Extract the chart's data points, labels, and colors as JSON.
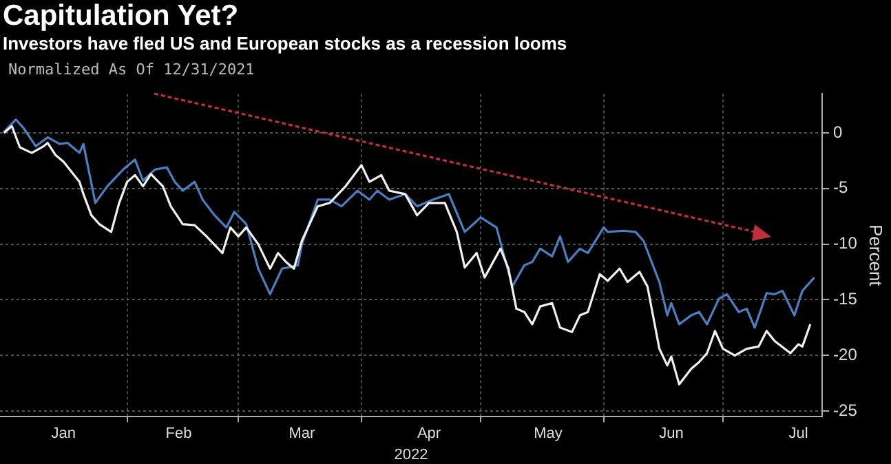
{
  "chart_data": {
    "type": "line",
    "title": "Capitulation Yet?",
    "subtitle": "Investors have fled US and European stocks as a recession looms",
    "annotations": [
      "Normalized As Of 12/31/2021"
    ],
    "xlabel": "2022",
    "ylabel": "Percent",
    "xlim": [
      "2021-12-31",
      "2022-07-26"
    ],
    "xticks": [
      {
        "value": "2022-01-16",
        "label": "Jan"
      },
      {
        "value": "2022-02-01",
        "label": null
      },
      {
        "value": "2022-02-14",
        "label": "Feb"
      },
      {
        "value": "2022-03-01",
        "label": null
      },
      {
        "value": "2022-03-17",
        "label": "Mar"
      },
      {
        "value": "2022-04-01",
        "label": null
      },
      {
        "value": "2022-04-18",
        "label": "Apr"
      },
      {
        "value": "2022-05-01",
        "label": null
      },
      {
        "value": "2022-05-18",
        "label": "May"
      },
      {
        "value": "2022-06-01",
        "label": null
      },
      {
        "value": "2022-06-18",
        "label": "Jun"
      },
      {
        "value": "2022-07-01",
        "label": null
      },
      {
        "value": "2022-07-20",
        "label": "Jul"
      }
    ],
    "ylim": [
      -25.5,
      3.5
    ],
    "yticks": [
      0,
      -5,
      -10,
      -15,
      -20,
      -25
    ],
    "grid": true,
    "legend": false,
    "marker": "none",
    "line_style": "solid",
    "series": [
      {
        "color": "#f0f0f0",
        "x": [
          "2022-01-01",
          "2022-01-03",
          "2022-01-05",
          "2022-01-08",
          "2022-01-11",
          "2022-01-12",
          "2022-01-14",
          "2022-01-16",
          "2022-01-20",
          "2022-01-21",
          "2022-01-23",
          "2022-01-25",
          "2022-01-28",
          "2022-01-30",
          "2022-02-01",
          "2022-02-03",
          "2022-02-05",
          "2022-02-07",
          "2022-02-10",
          "2022-02-12",
          "2022-02-15",
          "2022-02-18",
          "2022-02-21",
          "2022-02-25",
          "2022-02-27",
          "2022-03-01",
          "2022-03-03",
          "2022-03-06",
          "2022-03-09",
          "2022-03-11",
          "2022-03-13",
          "2022-03-15",
          "2022-03-17",
          "2022-03-21",
          "2022-03-24",
          "2022-03-28",
          "2022-04-01",
          "2022-04-03",
          "2022-04-06",
          "2022-04-08",
          "2022-04-12",
          "2022-04-15",
          "2022-04-18",
          "2022-04-22",
          "2022-04-25",
          "2022-04-27",
          "2022-04-30",
          "2022-05-02",
          "2022-05-06",
          "2022-05-08",
          "2022-05-10",
          "2022-05-12",
          "2022-05-14",
          "2022-05-16",
          "2022-05-19",
          "2022-05-21",
          "2022-05-24",
          "2022-05-26",
          "2022-05-28",
          "2022-05-31",
          "2022-06-02",
          "2022-06-05",
          "2022-06-07",
          "2022-06-10",
          "2022-06-12",
          "2022-06-15",
          "2022-06-17",
          "2022-06-18",
          "2022-06-20",
          "2022-06-23",
          "2022-06-25",
          "2022-06-27",
          "2022-06-29",
          "2022-07-01",
          "2022-07-04",
          "2022-07-07",
          "2022-07-10",
          "2022-07-12",
          "2022-07-14",
          "2022-07-18",
          "2022-07-20",
          "2022-07-21",
          "2022-07-23"
        ],
        "values": [
          0,
          0.6,
          -1.3,
          -1.8,
          -1.2,
          -0.9,
          -2.0,
          -2.6,
          -4.4,
          -5.5,
          -7.4,
          -8.2,
          -8.9,
          -6.3,
          -4.4,
          -3.8,
          -4.8,
          -3.7,
          -4.8,
          -6.6,
          -8.2,
          -8.3,
          -9.3,
          -10.8,
          -8.5,
          -9.3,
          -8.5,
          -10.0,
          -12.2,
          -10.8,
          -11.6,
          -12.2,
          -9.7,
          -6.6,
          -6.3,
          -4.8,
          -2.9,
          -4.4,
          -3.8,
          -5.2,
          -5.5,
          -7.4,
          -6.3,
          -6.3,
          -8.9,
          -12.1,
          -10.8,
          -13.0,
          -10.4,
          -12.2,
          -15.8,
          -16.1,
          -17.2,
          -15.6,
          -15.3,
          -17.5,
          -17.9,
          -16.4,
          -16.1,
          -12.7,
          -13.3,
          -12.2,
          -13.4,
          -12.5,
          -13.8,
          -19.4,
          -20.9,
          -20.1,
          -22.6,
          -21.2,
          -20.6,
          -19.8,
          -17.8,
          -19.4,
          -20.0,
          -19.4,
          -19.2,
          -17.8,
          -18.7,
          -19.8,
          -19.0,
          -19.2,
          -17.2
        ]
      },
      {
        "color": "#4a7fc1",
        "x": [
          "2022-01-01",
          "2022-01-04",
          "2022-01-06",
          "2022-01-09",
          "2022-01-12",
          "2022-01-15",
          "2022-01-17",
          "2022-01-20",
          "2022-01-21",
          "2022-01-24",
          "2022-01-27",
          "2022-01-31",
          "2022-02-03",
          "2022-02-05",
          "2022-02-08",
          "2022-02-11",
          "2022-02-13",
          "2022-02-15",
          "2022-02-18",
          "2022-02-20",
          "2022-02-23",
          "2022-02-26",
          "2022-02-28",
          "2022-03-03",
          "2022-03-06",
          "2022-03-09",
          "2022-03-12",
          "2022-03-16",
          "2022-03-17",
          "2022-03-21",
          "2022-03-24",
          "2022-03-27",
          "2022-03-31",
          "2022-04-03",
          "2022-04-05",
          "2022-04-08",
          "2022-04-12",
          "2022-04-15",
          "2022-04-19",
          "2022-04-23",
          "2022-04-27",
          "2022-05-01",
          "2022-05-05",
          "2022-05-09",
          "2022-05-12",
          "2022-05-14",
          "2022-05-16",
          "2022-05-19",
          "2022-05-21",
          "2022-05-23",
          "2022-05-26",
          "2022-05-28",
          "2022-06-01",
          "2022-06-02",
          "2022-06-06",
          "2022-06-09",
          "2022-06-11",
          "2022-06-15",
          "2022-06-17",
          "2022-06-18",
          "2022-06-20",
          "2022-06-23",
          "2022-06-25",
          "2022-06-27",
          "2022-06-30",
          "2022-07-02",
          "2022-07-05",
          "2022-07-07",
          "2022-07-09",
          "2022-07-12",
          "2022-07-14",
          "2022-07-16",
          "2022-07-19",
          "2022-07-21",
          "2022-07-24"
        ],
        "values": [
          0.1,
          1.2,
          0.4,
          -1.2,
          -0.4,
          -1.0,
          -0.9,
          -1.8,
          -1.0,
          -6.3,
          -4.8,
          -3.3,
          -2.4,
          -4.3,
          -3.3,
          -3.1,
          -4.4,
          -5.2,
          -4.4,
          -6.0,
          -7.4,
          -8.5,
          -7.1,
          -8.2,
          -12.2,
          -14.5,
          -12.2,
          -11.9,
          -10.0,
          -6.0,
          -6.0,
          -6.6,
          -5.2,
          -6.0,
          -5.2,
          -6.0,
          -5.5,
          -6.6,
          -6.0,
          -5.5,
          -8.9,
          -7.6,
          -8.5,
          -13.8,
          -11.9,
          -11.6,
          -10.4,
          -11.1,
          -9.3,
          -11.6,
          -10.4,
          -10.8,
          -8.5,
          -8.9,
          -8.8,
          -8.9,
          -9.7,
          -13.4,
          -16.4,
          -15.3,
          -17.2,
          -16.4,
          -16.1,
          -17.2,
          -14.9,
          -14.5,
          -16.1,
          -15.8,
          -17.5,
          -14.4,
          -14.5,
          -14.2,
          -16.4,
          -14.2,
          -13.0
        ]
      }
    ]
  }
}
